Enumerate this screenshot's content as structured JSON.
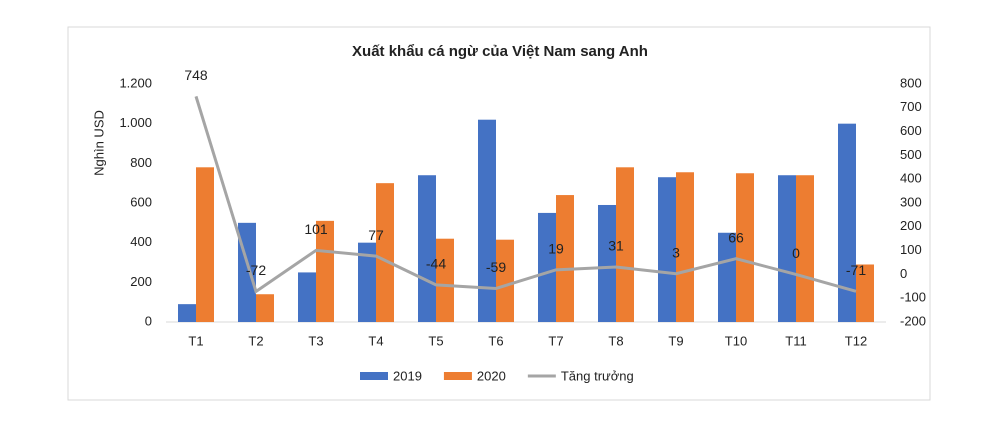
{
  "chart_data": {
    "type": "bar_line",
    "title": "Xuất khẩu cá ngừ của Việt Nam sang Anh",
    "y_label": "Nghìn USD",
    "categories": [
      "T1",
      "T2",
      "T3",
      "T4",
      "T5",
      "T6",
      "T7",
      "T8",
      "T9",
      "T10",
      "T11",
      "T12"
    ],
    "series": [
      {
        "name": "2019",
        "color": "#4472c4",
        "type": "bar",
        "values": [
          90,
          500,
          250,
          400,
          740,
          1020,
          550,
          590,
          730,
          450,
          740,
          1000
        ]
      },
      {
        "name": "2020",
        "color": "#ed7d31",
        "type": "bar",
        "values": [
          780,
          140,
          510,
          700,
          420,
          415,
          640,
          780,
          755,
          750,
          740,
          290
        ]
      },
      {
        "name": "Tăng trưởng",
        "color": "#a5a5a5",
        "type": "line",
        "axis": "y2",
        "values": [
          748,
          -72,
          101,
          77,
          -44,
          -59,
          19,
          31,
          3,
          66,
          0,
          -71
        ]
      }
    ],
    "ylim": [
      0,
      1200
    ],
    "yticks": [
      0,
      200,
      400,
      600,
      800,
      {
        "value": 1000,
        "label": "1.000"
      },
      {
        "value": 1200,
        "label": "1.200"
      }
    ],
    "y2lim": [
      -200,
      800
    ],
    "y2ticks": [
      -200,
      -100,
      0,
      100,
      200,
      300,
      400,
      500,
      600,
      700,
      800
    ],
    "legend": "bottom"
  }
}
